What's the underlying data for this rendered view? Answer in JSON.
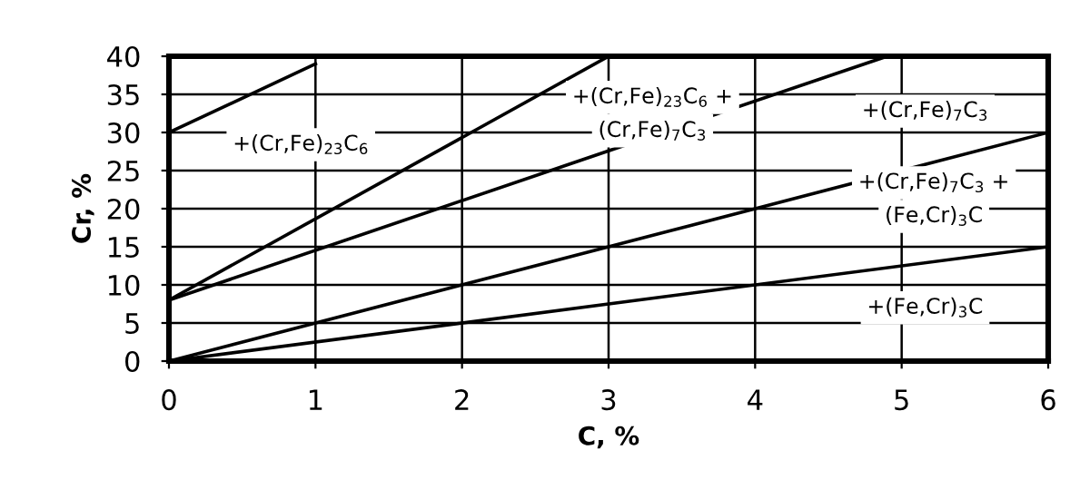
{
  "chart_data": {
    "type": "line",
    "xlabel": "C, %",
    "ylabel": "Cr, %",
    "xlim": [
      0,
      6
    ],
    "ylim": [
      0,
      40
    ],
    "xticks": [
      0,
      1,
      2,
      3,
      4,
      5,
      6
    ],
    "yticks": [
      0,
      5,
      10,
      15,
      20,
      25,
      30,
      35,
      40
    ],
    "grid": true,
    "series": [
      {
        "color": "#000000",
        "x": [
          0,
          1
        ],
        "values": [
          30,
          39
        ]
      },
      {
        "color": "#000000",
        "x": [
          0,
          3
        ],
        "values": [
          8,
          40
        ]
      },
      {
        "color": "#000000",
        "x": [
          0,
          4.9
        ],
        "values": [
          8,
          40
        ]
      },
      {
        "color": "#000000",
        "x": [
          0,
          6
        ],
        "values": [
          0,
          30
        ]
      },
      {
        "color": "#000000",
        "x": [
          0,
          6
        ],
        "values": [
          0,
          15
        ]
      }
    ],
    "annotations": [
      "+(Cr,Fe)$_{23}$C$_{6}$",
      "+(Cr,Fe)$_{23}$C$_{6}$ +",
      "(Cr,Fe)$_{7}$C$_{3}$",
      "+(Cr,Fe)$_{7}$C$_{3}$",
      "+(Cr,Fe)$_{7}$C$_{3}$ +",
      "(Fe,Cr)$_{3}$C",
      "+(Fe,Cr)$_{3}$C"
    ]
  }
}
